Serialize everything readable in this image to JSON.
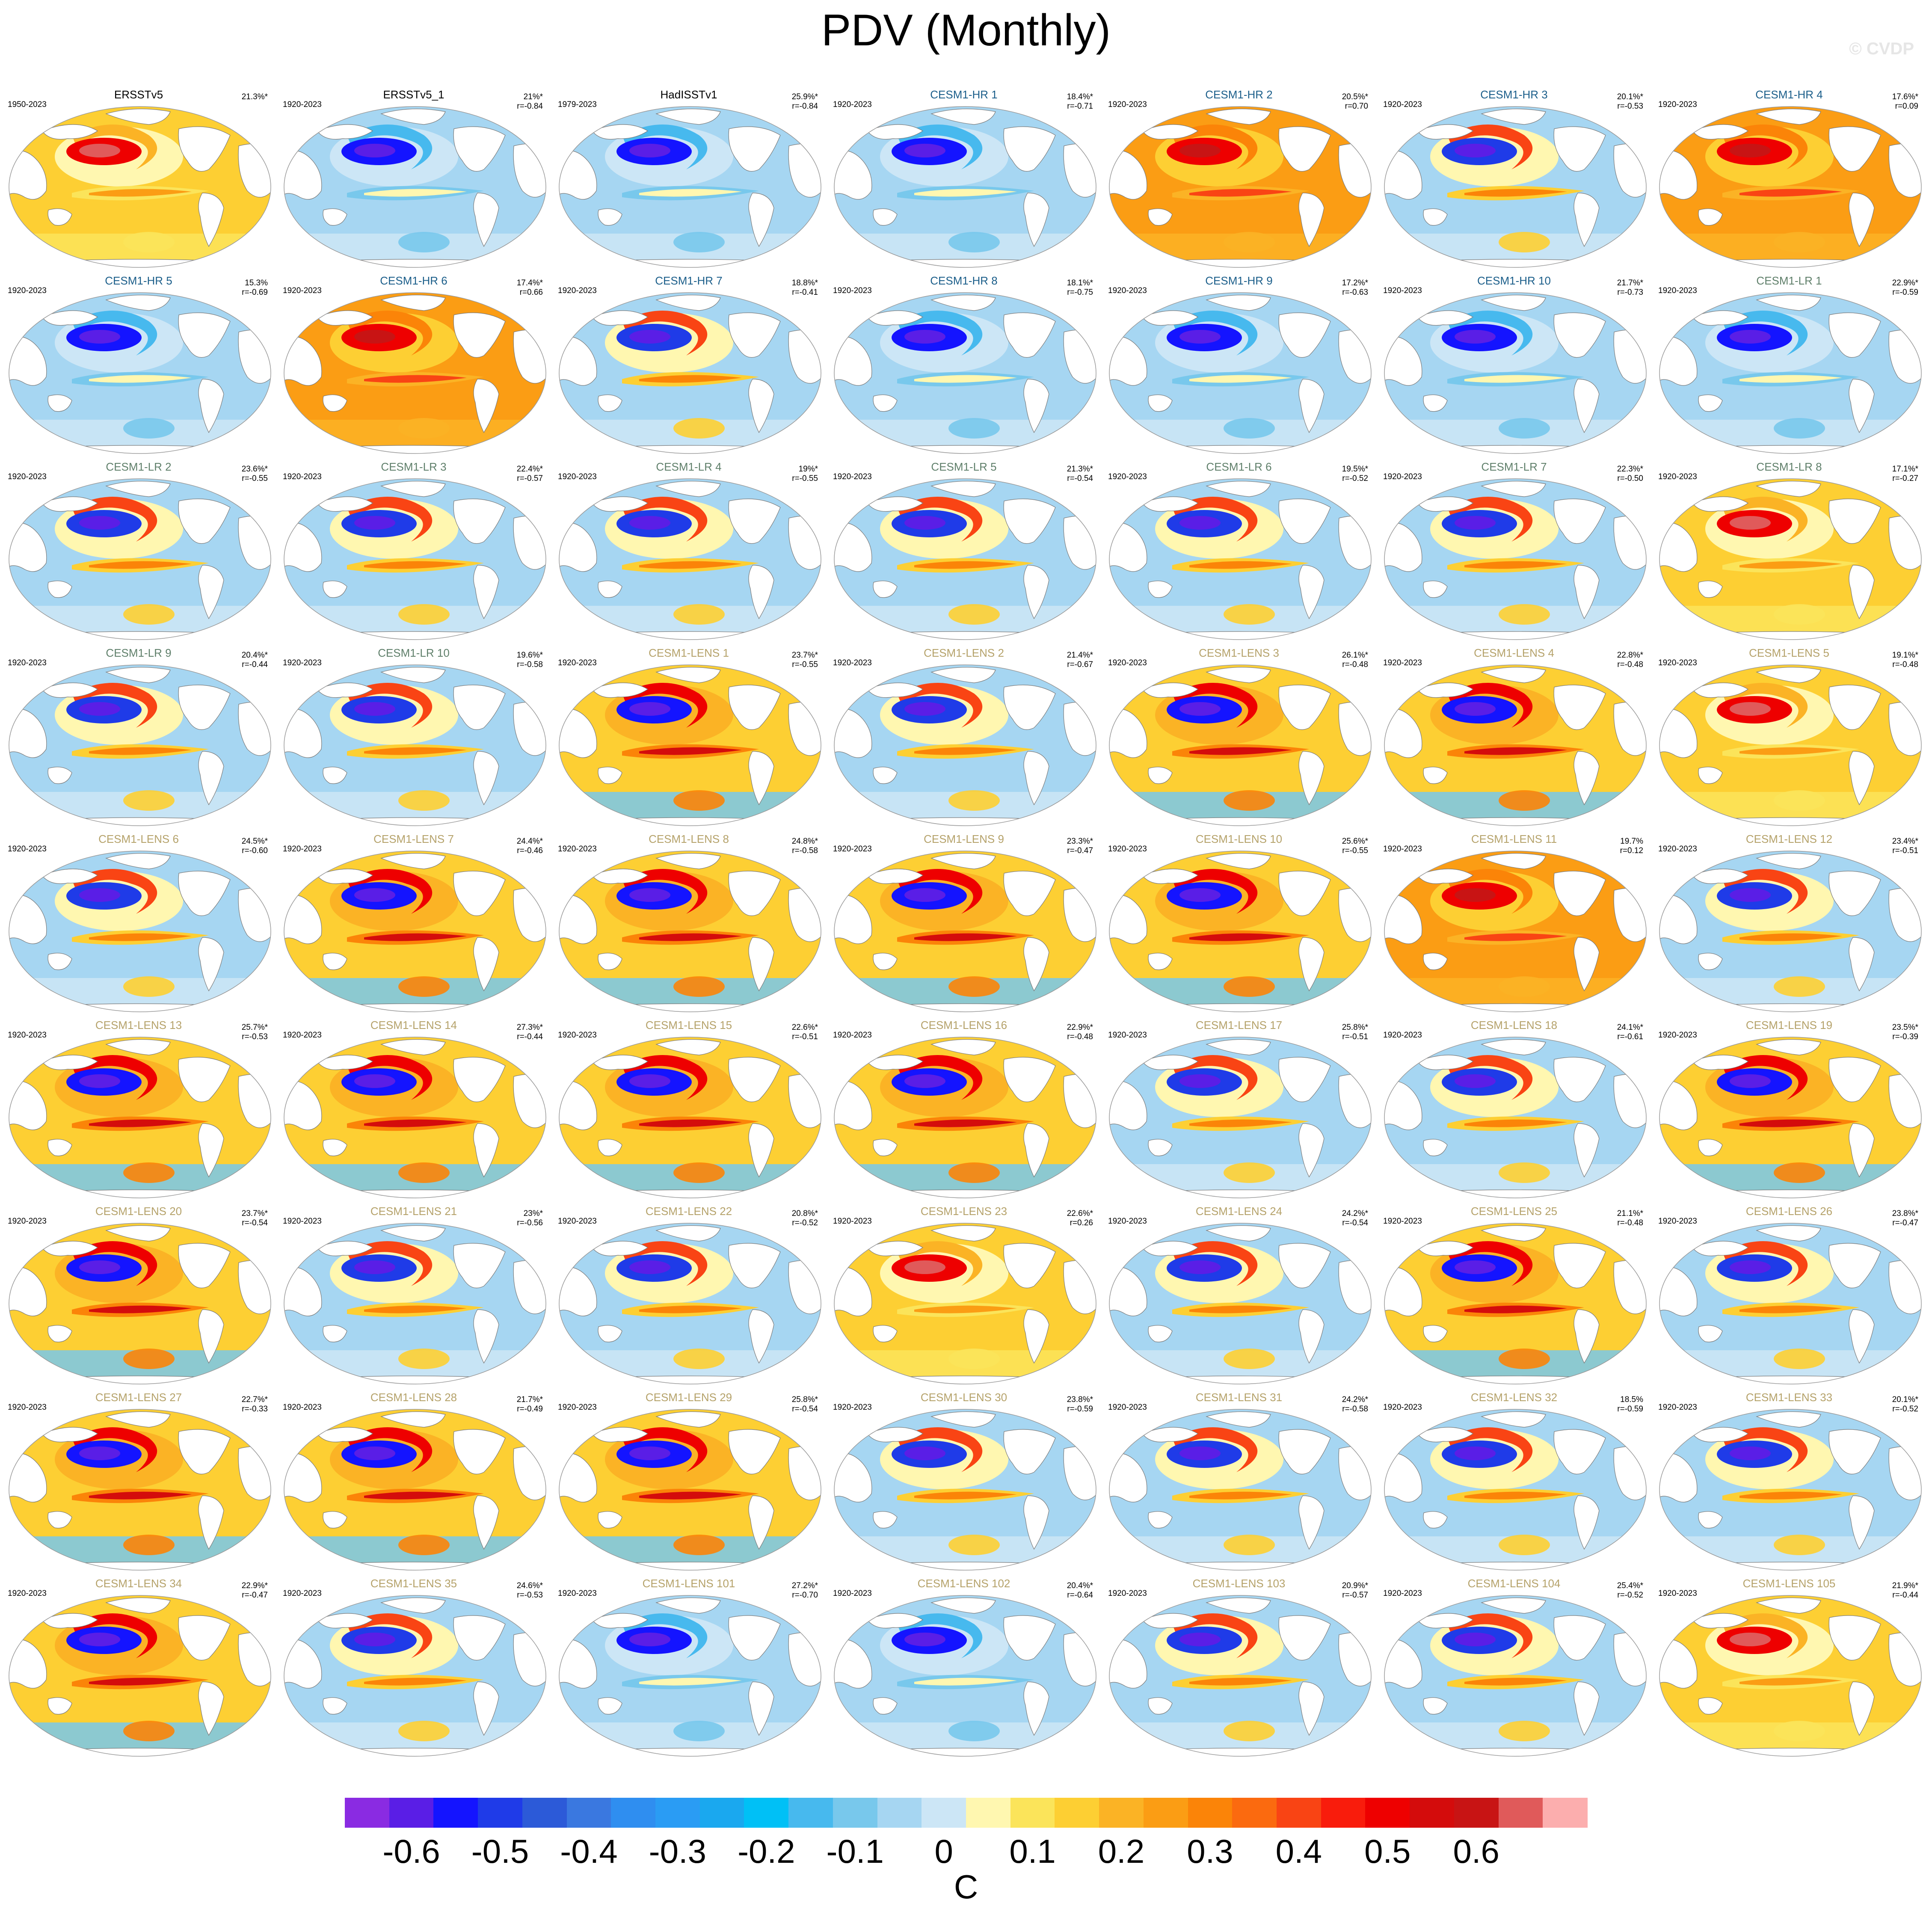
{
  "title": "PDV (Monthly)",
  "copyright": "© CVDP",
  "units_label": "C",
  "chart_data": {
    "type": "heatmap",
    "description_type": "small-multiple global SST regression maps",
    "colorbar": {
      "colors": [
        "#8a2be2",
        "#5a1ee6",
        "#1414ff",
        "#1f3be8",
        "#2c5ad8",
        "#3a78e0",
        "#2f8ef0",
        "#2a9cf4",
        "#1aa8ef",
        "#00c0f6",
        "#47b9ee",
        "#78c8ec",
        "#a6d6f2",
        "#cce6f6",
        "#fff7b0",
        "#fbe45a",
        "#fdcf33",
        "#fbb325",
        "#fb9d14",
        "#fb8408",
        "#fb6a0f",
        "#f94414",
        "#f91c0c",
        "#ee0000",
        "#d40c0c",
        "#c81414",
        "#e05a5a",
        "#fcaeae"
      ],
      "tick_labels": [
        "-0.6",
        "-0.5",
        "-0.4",
        "-0.3",
        "-0.2",
        "-0.1",
        "0",
        "0.1",
        "0.2",
        "0.3",
        "0.4",
        "0.5",
        "0.6"
      ]
    },
    "panels": [
      {
        "name": "ERSSTv5",
        "years": "1950-2023",
        "pct": "21.3%*",
        "r": "",
        "group": "obs",
        "pattern": "warm"
      },
      {
        "name": "ERSSTv5_1",
        "years": "1920-2023",
        "pct": "21%*",
        "r": "r=-0.84",
        "group": "obs",
        "pattern": "cool"
      },
      {
        "name": "HadISSTv1",
        "years": "1979-2023",
        "pct": "25.9%*",
        "r": "r=-0.84",
        "group": "obs",
        "pattern": "cool"
      },
      {
        "name": "CESM1-HR 1",
        "years": "1920-2023",
        "pct": "18.4%*",
        "r": "r=-0.71",
        "group": "hr",
        "pattern": "cool"
      },
      {
        "name": "CESM1-HR 2",
        "years": "1920-2023",
        "pct": "20.5%*",
        "r": "r=0.70",
        "group": "hr",
        "pattern": "hot"
      },
      {
        "name": "CESM1-HR 3",
        "years": "1920-2023",
        "pct": "20.1%*",
        "r": "r=-0.53",
        "group": "hr",
        "pattern": "mixed"
      },
      {
        "name": "CESM1-HR 4",
        "years": "1920-2023",
        "pct": "17.6%*",
        "r": "r=0.09",
        "group": "hr",
        "pattern": "hot"
      },
      {
        "name": "CESM1-HR 5",
        "years": "1920-2023",
        "pct": "15.3%",
        "r": "r=-0.69",
        "group": "hr",
        "pattern": "cool"
      },
      {
        "name": "CESM1-HR 6",
        "years": "1920-2023",
        "pct": "17.4%*",
        "r": "r=0.66",
        "group": "hr",
        "pattern": "hot"
      },
      {
        "name": "CESM1-HR 7",
        "years": "1920-2023",
        "pct": "18.8%*",
        "r": "r=-0.41",
        "group": "hr",
        "pattern": "mixed"
      },
      {
        "name": "CESM1-HR 8",
        "years": "1920-2023",
        "pct": "18.1%*",
        "r": "r=-0.75",
        "group": "hr",
        "pattern": "cool"
      },
      {
        "name": "CESM1-HR 9",
        "years": "1920-2023",
        "pct": "17.2%*",
        "r": "r=-0.63",
        "group": "hr",
        "pattern": "cool"
      },
      {
        "name": "CESM1-HR 10",
        "years": "1920-2023",
        "pct": "21.7%*",
        "r": "r=-0.73",
        "group": "hr",
        "pattern": "cool"
      },
      {
        "name": "CESM1-LR 1",
        "years": "1920-2023",
        "pct": "22.9%*",
        "r": "r=-0.59",
        "group": "lr",
        "pattern": "cool"
      },
      {
        "name": "CESM1-LR 2",
        "years": "1920-2023",
        "pct": "23.6%*",
        "r": "r=-0.55",
        "group": "lr",
        "pattern": "mixed"
      },
      {
        "name": "CESM1-LR 3",
        "years": "1920-2023",
        "pct": "22.4%*",
        "r": "r=-0.57",
        "group": "lr",
        "pattern": "mixed"
      },
      {
        "name": "CESM1-LR 4",
        "years": "1920-2023",
        "pct": "19%*",
        "r": "r=-0.55",
        "group": "lr",
        "pattern": "mixed"
      },
      {
        "name": "CESM1-LR 5",
        "years": "1920-2023",
        "pct": "21.3%*",
        "r": "r=-0.54",
        "group": "lr",
        "pattern": "mixed"
      },
      {
        "name": "CESM1-LR 6",
        "years": "1920-2023",
        "pct": "19.5%*",
        "r": "r=-0.52",
        "group": "lr",
        "pattern": "mixed"
      },
      {
        "name": "CESM1-LR 7",
        "years": "1920-2023",
        "pct": "22.3%*",
        "r": "r=-0.50",
        "group": "lr",
        "pattern": "mixed"
      },
      {
        "name": "CESM1-LR 8",
        "years": "1920-2023",
        "pct": "17.1%*",
        "r": "r=-0.27",
        "group": "lr",
        "pattern": "warm"
      },
      {
        "name": "CESM1-LR 9",
        "years": "1920-2023",
        "pct": "20.4%*",
        "r": "r=-0.44",
        "group": "lr",
        "pattern": "mixed"
      },
      {
        "name": "CESM1-LR 10",
        "years": "1920-2023",
        "pct": "19.6%*",
        "r": "r=-0.58",
        "group": "lr",
        "pattern": "mixed"
      },
      {
        "name": "CESM1-LENS 1",
        "years": "1920-2023",
        "pct": "23.7%*",
        "r": "r=-0.55",
        "group": "lens",
        "pattern": "strong"
      },
      {
        "name": "CESM1-LENS 2",
        "years": "1920-2023",
        "pct": "21.4%*",
        "r": "r=-0.67",
        "group": "lens",
        "pattern": "mixed"
      },
      {
        "name": "CESM1-LENS 3",
        "years": "1920-2023",
        "pct": "26.1%*",
        "r": "r=-0.48",
        "group": "lens",
        "pattern": "strong"
      },
      {
        "name": "CESM1-LENS 4",
        "years": "1920-2023",
        "pct": "22.8%*",
        "r": "r=-0.48",
        "group": "lens",
        "pattern": "strong"
      },
      {
        "name": "CESM1-LENS 5",
        "years": "1920-2023",
        "pct": "19.1%*",
        "r": "r=-0.48",
        "group": "lens",
        "pattern": "warm"
      },
      {
        "name": "CESM1-LENS 6",
        "years": "1920-2023",
        "pct": "24.5%*",
        "r": "r=-0.60",
        "group": "lens",
        "pattern": "mixed"
      },
      {
        "name": "CESM1-LENS 7",
        "years": "1920-2023",
        "pct": "24.4%*",
        "r": "r=-0.46",
        "group": "lens",
        "pattern": "strong"
      },
      {
        "name": "CESM1-LENS 8",
        "years": "1920-2023",
        "pct": "24.8%*",
        "r": "r=-0.58",
        "group": "lens",
        "pattern": "strong"
      },
      {
        "name": "CESM1-LENS 9",
        "years": "1920-2023",
        "pct": "23.3%*",
        "r": "r=-0.47",
        "group": "lens",
        "pattern": "strong"
      },
      {
        "name": "CESM1-LENS 10",
        "years": "1920-2023",
        "pct": "25.6%*",
        "r": "r=-0.55",
        "group": "lens",
        "pattern": "strong"
      },
      {
        "name": "CESM1-LENS 11",
        "years": "1920-2023",
        "pct": "19.7%",
        "r": "r=0.12",
        "group": "lens",
        "pattern": "hot"
      },
      {
        "name": "CESM1-LENS 12",
        "years": "1920-2023",
        "pct": "23.4%*",
        "r": "r=-0.51",
        "group": "lens",
        "pattern": "mixed"
      },
      {
        "name": "CESM1-LENS 13",
        "years": "1920-2023",
        "pct": "25.7%*",
        "r": "r=-0.53",
        "group": "lens",
        "pattern": "strong"
      },
      {
        "name": "CESM1-LENS 14",
        "years": "1920-2023",
        "pct": "27.3%*",
        "r": "r=-0.44",
        "group": "lens",
        "pattern": "strong"
      },
      {
        "name": "CESM1-LENS 15",
        "years": "1920-2023",
        "pct": "22.6%*",
        "r": "r=-0.51",
        "group": "lens",
        "pattern": "strong"
      },
      {
        "name": "CESM1-LENS 16",
        "years": "1920-2023",
        "pct": "22.9%*",
        "r": "r=-0.48",
        "group": "lens",
        "pattern": "strong"
      },
      {
        "name": "CESM1-LENS 17",
        "years": "1920-2023",
        "pct": "25.8%*",
        "r": "r=-0.51",
        "group": "lens",
        "pattern": "mixed"
      },
      {
        "name": "CESM1-LENS 18",
        "years": "1920-2023",
        "pct": "24.1%*",
        "r": "r=-0.61",
        "group": "lens",
        "pattern": "mixed"
      },
      {
        "name": "CESM1-LENS 19",
        "years": "1920-2023",
        "pct": "23.5%*",
        "r": "r=-0.39",
        "group": "lens",
        "pattern": "strong"
      },
      {
        "name": "CESM1-LENS 20",
        "years": "1920-2023",
        "pct": "23.7%*",
        "r": "r=-0.54",
        "group": "lens",
        "pattern": "strong"
      },
      {
        "name": "CESM1-LENS 21",
        "years": "1920-2023",
        "pct": "23%*",
        "r": "r=-0.56",
        "group": "lens",
        "pattern": "mixed"
      },
      {
        "name": "CESM1-LENS 22",
        "years": "1920-2023",
        "pct": "20.8%*",
        "r": "r=-0.52",
        "group": "lens",
        "pattern": "mixed"
      },
      {
        "name": "CESM1-LENS 23",
        "years": "1920-2023",
        "pct": "22.6%*",
        "r": "r=0.26",
        "group": "lens",
        "pattern": "warm"
      },
      {
        "name": "CESM1-LENS 24",
        "years": "1920-2023",
        "pct": "24.2%*",
        "r": "r=-0.54",
        "group": "lens",
        "pattern": "mixed"
      },
      {
        "name": "CESM1-LENS 25",
        "years": "1920-2023",
        "pct": "21.1%*",
        "r": "r=-0.48",
        "group": "lens",
        "pattern": "strong"
      },
      {
        "name": "CESM1-LENS 26",
        "years": "1920-2023",
        "pct": "23.8%*",
        "r": "r=-0.47",
        "group": "lens",
        "pattern": "mixed"
      },
      {
        "name": "CESM1-LENS 27",
        "years": "1920-2023",
        "pct": "22.7%*",
        "r": "r=-0.33",
        "group": "lens",
        "pattern": "strong"
      },
      {
        "name": "CESM1-LENS 28",
        "years": "1920-2023",
        "pct": "21.7%*",
        "r": "r=-0.49",
        "group": "lens",
        "pattern": "strong"
      },
      {
        "name": "CESM1-LENS 29",
        "years": "1920-2023",
        "pct": "25.8%*",
        "r": "r=-0.54",
        "group": "lens",
        "pattern": "strong"
      },
      {
        "name": "CESM1-LENS 30",
        "years": "1920-2023",
        "pct": "23.8%*",
        "r": "r=-0.59",
        "group": "lens",
        "pattern": "mixed"
      },
      {
        "name": "CESM1-LENS 31",
        "years": "1920-2023",
        "pct": "24.2%*",
        "r": "r=-0.58",
        "group": "lens",
        "pattern": "mixed"
      },
      {
        "name": "CESM1-LENS 32",
        "years": "1920-2023",
        "pct": "18.5%",
        "r": "r=-0.59",
        "group": "lens",
        "pattern": "mixed"
      },
      {
        "name": "CESM1-LENS 33",
        "years": "1920-2023",
        "pct": "20.1%*",
        "r": "r=-0.52",
        "group": "lens",
        "pattern": "mixed"
      },
      {
        "name": "CESM1-LENS 34",
        "years": "1920-2023",
        "pct": "22.9%*",
        "r": "r=-0.47",
        "group": "lens",
        "pattern": "strong"
      },
      {
        "name": "CESM1-LENS 35",
        "years": "1920-2023",
        "pct": "24.6%*",
        "r": "r=-0.53",
        "group": "lens",
        "pattern": "mixed"
      },
      {
        "name": "CESM1-LENS 101",
        "years": "1920-2023",
        "pct": "27.2%*",
        "r": "r=-0.70",
        "group": "lens",
        "pattern": "cool"
      },
      {
        "name": "CESM1-LENS 102",
        "years": "1920-2023",
        "pct": "20.4%*",
        "r": "r=-0.64",
        "group": "lens",
        "pattern": "cool"
      },
      {
        "name": "CESM1-LENS 103",
        "years": "1920-2023",
        "pct": "20.9%*",
        "r": "r=-0.57",
        "group": "lens",
        "pattern": "mixed"
      },
      {
        "name": "CESM1-LENS 104",
        "years": "1920-2023",
        "pct": "25.4%*",
        "r": "r=-0.52",
        "group": "lens",
        "pattern": "mixed"
      },
      {
        "name": "CESM1-LENS 105",
        "years": "1920-2023",
        "pct": "21.9%*",
        "r": "r=-0.44",
        "group": "lens",
        "pattern": "warm"
      }
    ]
  }
}
